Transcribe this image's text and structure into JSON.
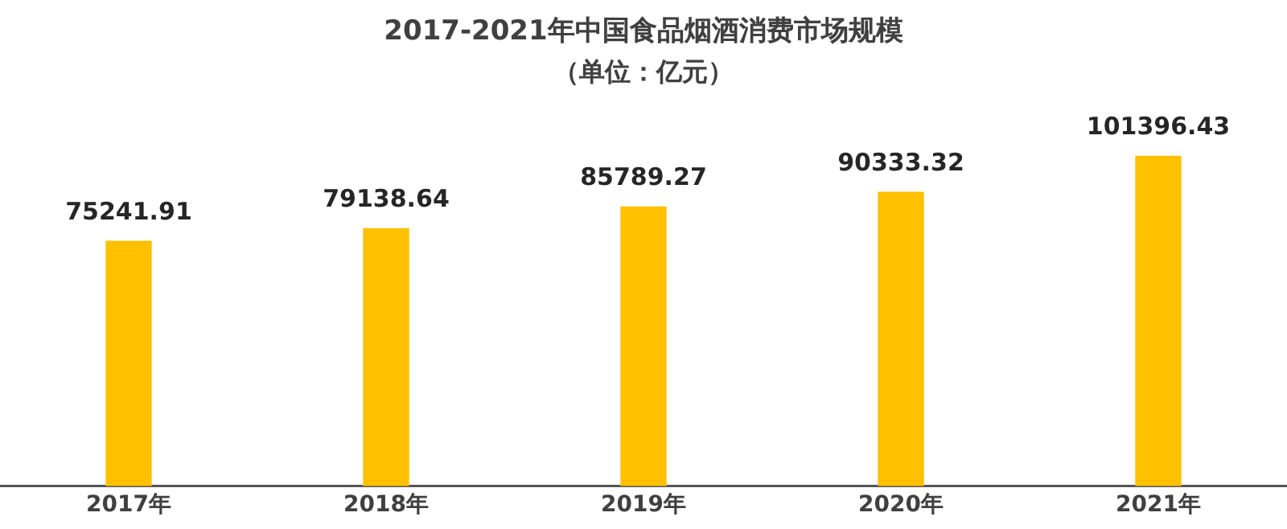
{
  "chart_data": {
    "type": "bar",
    "title": "2017-2021年中国食品烟酒消费市场规模",
    "subtitle": "（单位：亿元）",
    "categories": [
      "2017年",
      "2018年",
      "2019年",
      "2020年",
      "2021年"
    ],
    "values": [
      75241.91,
      79138.64,
      85789.27,
      90333.32,
      101396.43
    ],
    "color": "#ffc000",
    "data_labels": true
  }
}
